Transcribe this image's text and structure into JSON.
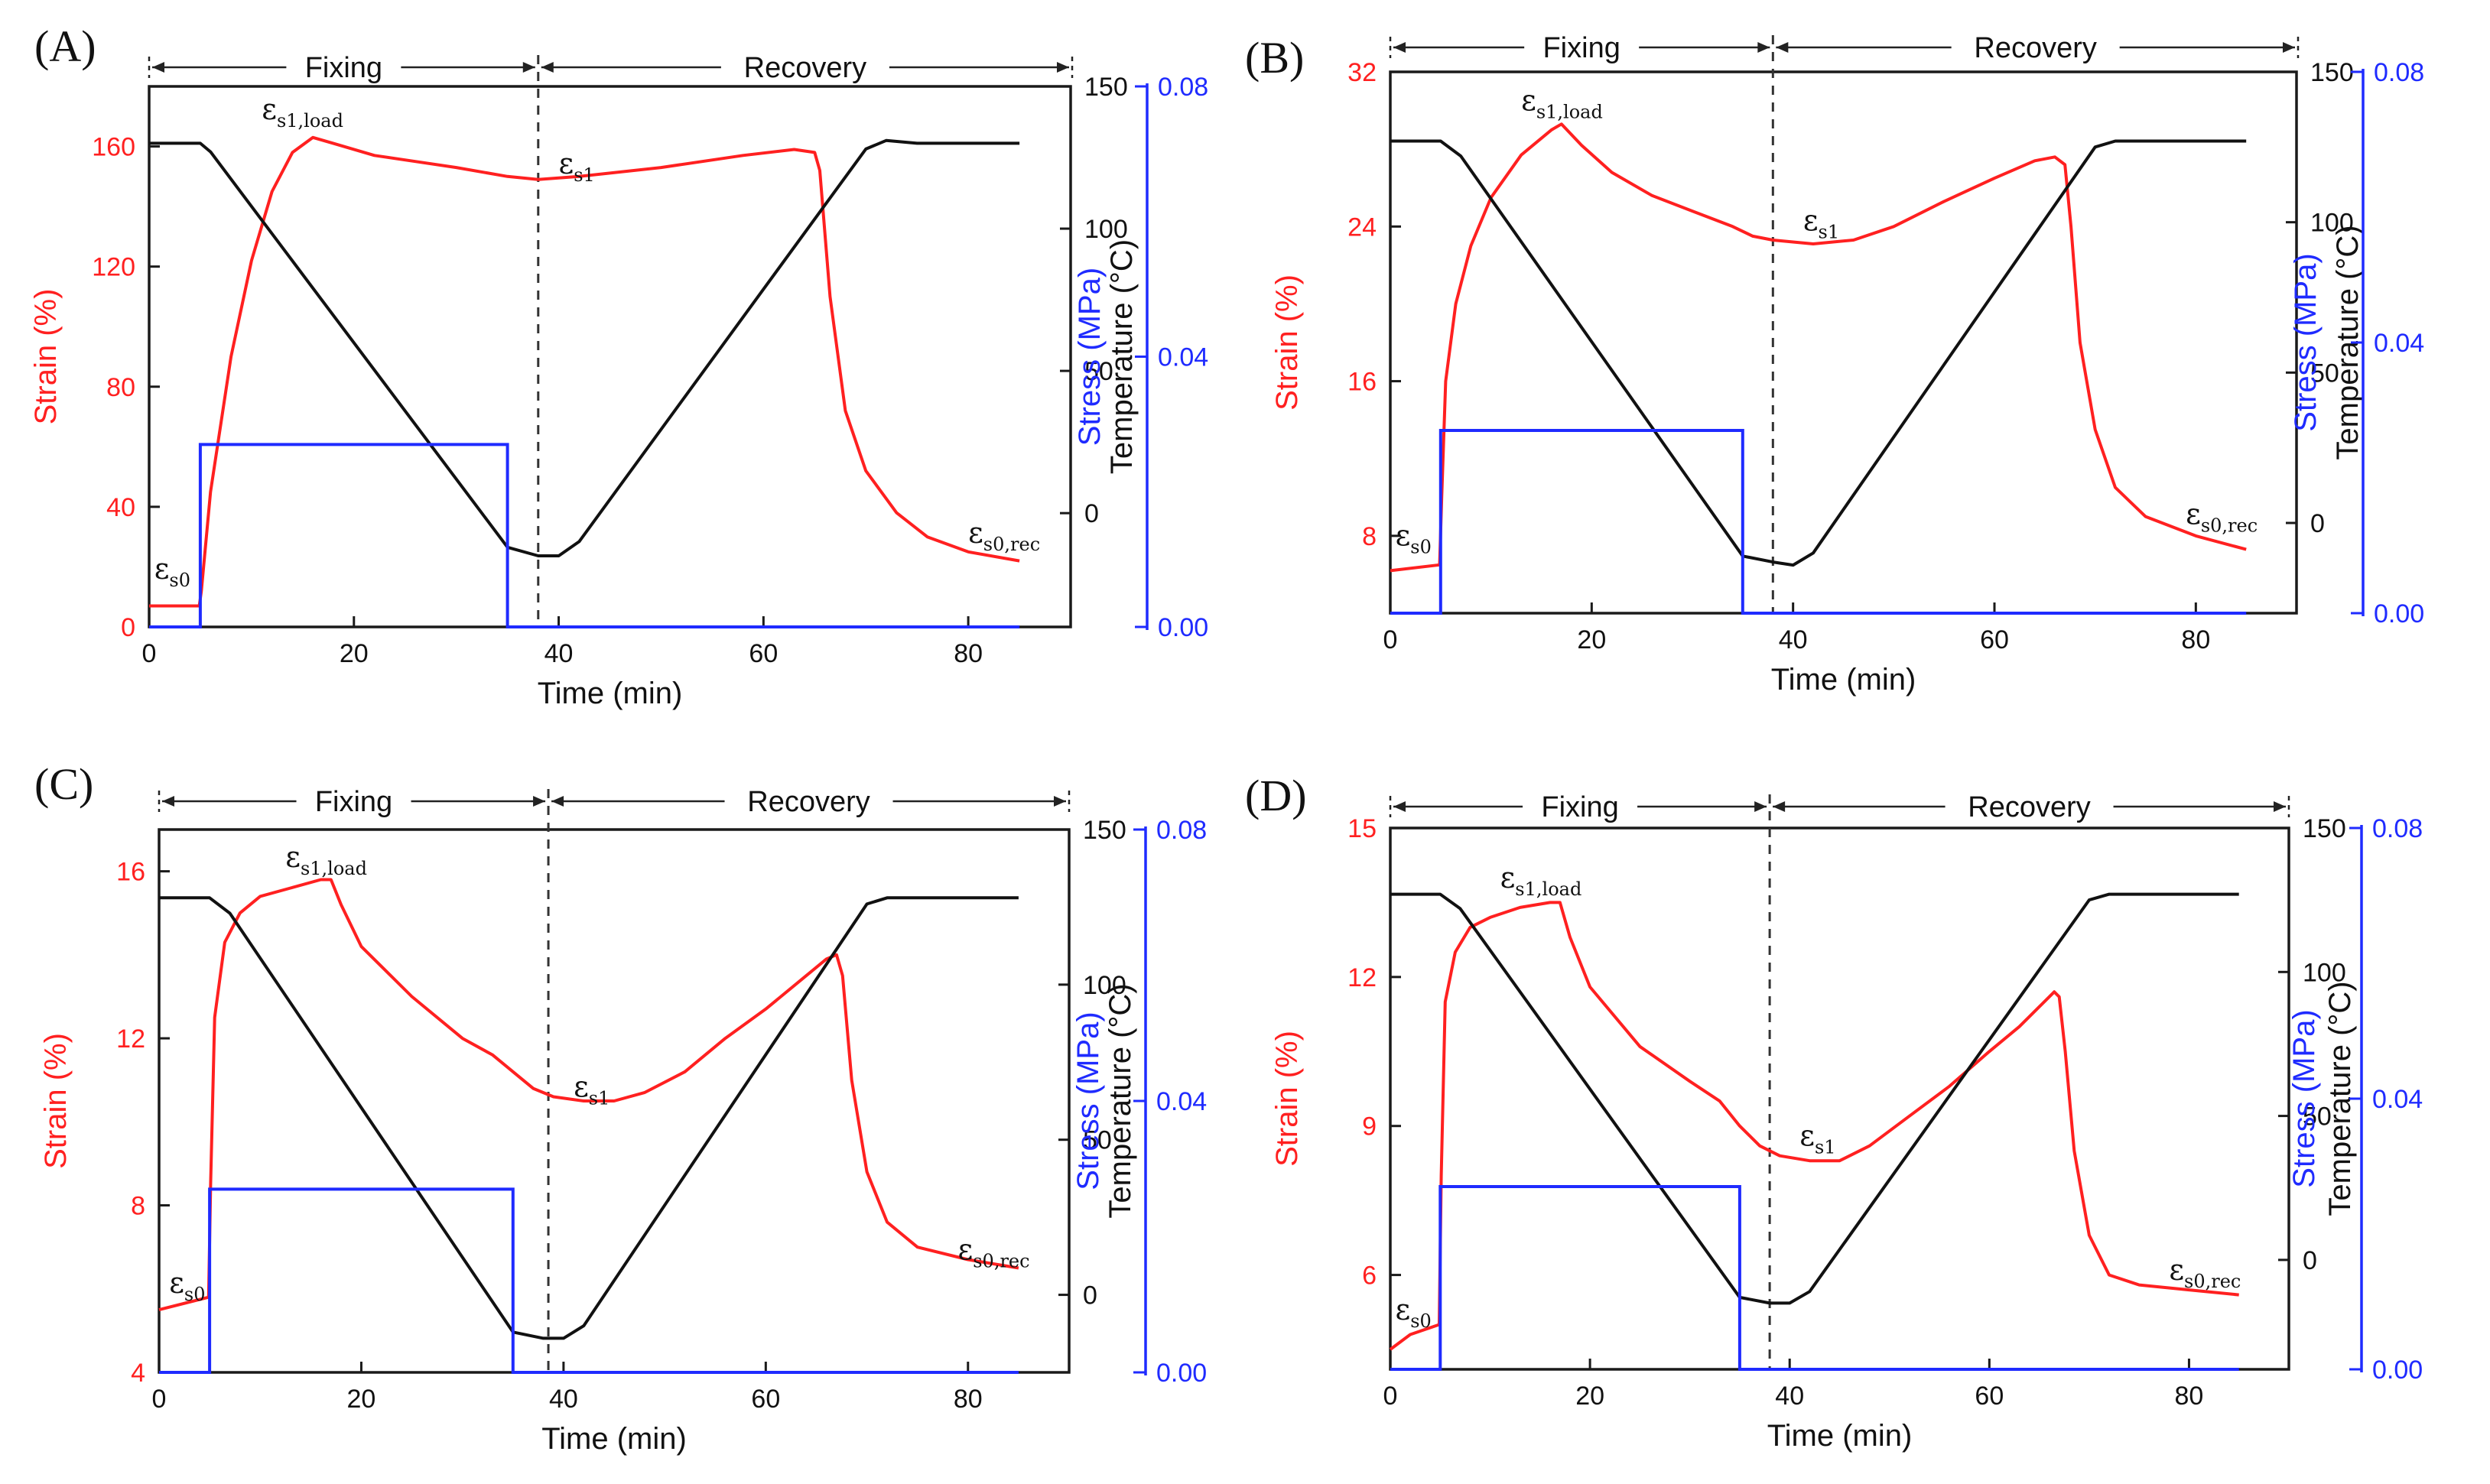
{
  "chart_data": [
    {
      "type": "line",
      "panel_label": "(A)",
      "phase_labels": [
        "Fixing",
        "Recovery"
      ],
      "phase_divider_time": 38,
      "xlabel": "Time (min)",
      "xlim": [
        0,
        90
      ],
      "xticks": [
        "0",
        "20",
        "40",
        "60",
        "80"
      ],
      "y_left": {
        "label": "Strain (%)",
        "lim": [
          0,
          180
        ],
        "ticks": [
          "0",
          "40",
          "80",
          "120",
          "160"
        ],
        "color": "#ff2020"
      },
      "y_right1": {
        "label": "Temperature (°C)",
        "lim": [
          -40,
          150
        ],
        "ticks": [
          "0",
          "50",
          "100",
          "150"
        ],
        "color": "#111111"
      },
      "y_right2": {
        "label": "Stress (MPa)",
        "lim": [
          0,
          0.08
        ],
        "ticks": [
          "0.00",
          "0.04",
          "0.08"
        ],
        "color": "#1f2bff"
      },
      "series": [
        {
          "name": "Strain",
          "axis": "y_left",
          "color": "#ff2020",
          "x": [
            0,
            4.9,
            5.1,
            6,
            8,
            10,
            12,
            14,
            16,
            18,
            22,
            26,
            30,
            35,
            38,
            42,
            50,
            58,
            63,
            65,
            65.5,
            66.5,
            68,
            70,
            73,
            76,
            80,
            85
          ],
          "y": [
            7,
            7,
            12,
            45,
            90,
            122,
            145,
            158,
            163,
            161,
            157,
            155,
            153,
            150,
            149,
            150,
            153,
            157,
            159,
            158,
            152,
            110,
            72,
            52,
            38,
            30,
            25,
            22
          ]
        },
        {
          "name": "Temperature",
          "axis": "y_right1",
          "color": "#111111",
          "x": [
            0,
            5,
            6,
            35,
            38,
            40,
            42,
            70,
            72,
            75,
            85
          ],
          "y": [
            130,
            130,
            127,
            -12,
            -15,
            -15,
            -10,
            128,
            131,
            130,
            130
          ]
        },
        {
          "name": "Stress",
          "axis": "y_right2",
          "color": "#1f2bff",
          "x": [
            0,
            5,
            5,
            35,
            35,
            85
          ],
          "y": [
            0,
            0,
            0.027,
            0.027,
            0,
            0
          ]
        }
      ],
      "annotations": [
        {
          "base": "ε",
          "sub": "s0",
          "x": 0.5,
          "y": 16
        },
        {
          "base": "ε",
          "sub": "s1,load",
          "x": 11,
          "y": 169
        },
        {
          "base": "ε",
          "sub": "s1",
          "x": 40,
          "y": 151
        },
        {
          "base": "ε",
          "sub": "s0,rec",
          "x": 80,
          "y": 28
        }
      ]
    },
    {
      "type": "line",
      "panel_label": "(B)",
      "phase_labels": [
        "Fixing",
        "Recovery"
      ],
      "phase_divider_time": 38,
      "xlabel": "Time (min)",
      "xlim": [
        0,
        90
      ],
      "xticks": [
        "0",
        "20",
        "40",
        "60",
        "80"
      ],
      "y_left": {
        "label": "Strain (%)",
        "lim": [
          4,
          32
        ],
        "ticks": [
          "8",
          "16",
          "24",
          "32"
        ],
        "color": "#ff2020"
      },
      "y_right1": {
        "label": "Temperature (°C)",
        "lim": [
          -30,
          150
        ],
        "ticks": [
          "0",
          "50",
          "100",
          "150"
        ],
        "color": "#111111"
      },
      "y_right2": {
        "label": "Stress (MPa)",
        "lim": [
          0,
          0.08
        ],
        "ticks": [
          "0.00",
          "0.04",
          "0.08"
        ],
        "color": "#1f2bff"
      },
      "series": [
        {
          "name": "Strain",
          "axis": "y_left",
          "color": "#ff2020",
          "x": [
            0,
            4.9,
            5.1,
            5.5,
            6.5,
            8,
            10,
            13,
            16,
            17,
            19,
            22,
            26,
            30,
            34,
            36,
            38,
            42,
            46,
            50,
            55,
            60,
            64,
            66,
            67,
            67.6,
            68.5,
            70,
            72,
            75,
            80,
            85
          ],
          "y": [
            6.2,
            6.5,
            10,
            16,
            20,
            23,
            25.5,
            27.7,
            29,
            29.3,
            28.2,
            26.8,
            25.6,
            24.8,
            24,
            23.5,
            23.3,
            23.1,
            23.3,
            24,
            25.3,
            26.5,
            27.4,
            27.6,
            27.2,
            24,
            18,
            13.5,
            10.5,
            9,
            8,
            7.3
          ]
        },
        {
          "name": "Temperature",
          "axis": "y_right1",
          "color": "#111111",
          "x": [
            0,
            5,
            7,
            35,
            38,
            40,
            42,
            70,
            72,
            85
          ],
          "y": [
            127,
            127,
            122,
            -11,
            -13,
            -14,
            -10,
            125,
            127,
            127
          ]
        },
        {
          "name": "Stress",
          "axis": "y_right2",
          "color": "#1f2bff",
          "x": [
            0,
            5,
            5,
            35,
            35,
            85
          ],
          "y": [
            0,
            0,
            0.027,
            0.027,
            0,
            0
          ]
        }
      ],
      "annotations": [
        {
          "base": "ε",
          "sub": "s0",
          "x": 0.5,
          "y": 7.5
        },
        {
          "base": "ε",
          "sub": "s1,load",
          "x": 13,
          "y": 30
        },
        {
          "base": "ε",
          "sub": "s1",
          "x": 41,
          "y": 23.8
        },
        {
          "base": "ε",
          "sub": "s0,rec",
          "x": 79,
          "y": 8.6
        }
      ]
    },
    {
      "type": "line",
      "panel_label": "(C)",
      "phase_labels": [
        "Fixing",
        "Recovery"
      ],
      "phase_divider_time": 38.5,
      "xlabel": "Time (min)",
      "xlim": [
        0,
        90
      ],
      "xticks": [
        "0",
        "20",
        "40",
        "60",
        "80"
      ],
      "y_left": {
        "label": "Strain (%)",
        "lim": [
          4,
          17
        ],
        "ticks": [
          "4",
          "8",
          "12",
          "16"
        ],
        "color": "#ff2020"
      },
      "y_right1": {
        "label": "Temperature (°C)",
        "lim": [
          -25,
          150
        ],
        "ticks": [
          "0",
          "50",
          "100",
          "150"
        ],
        "color": "#111111"
      },
      "y_right2": {
        "label": "Stress (MPa)",
        "lim": [
          0,
          0.08
        ],
        "ticks": [
          "0.00",
          "0.04",
          "0.08"
        ],
        "color": "#1f2bff"
      },
      "series": [
        {
          "name": "Strain",
          "axis": "y_left",
          "color": "#ff2020",
          "x": [
            0,
            4.9,
            5.1,
            5.5,
            6.5,
            8,
            10,
            13,
            16,
            17,
            18,
            20,
            25,
            30,
            33,
            35,
            37,
            39,
            42,
            45,
            48,
            52,
            56,
            60,
            64,
            66,
            67,
            67.6,
            68.5,
            70,
            72,
            75,
            80,
            85
          ],
          "y": [
            5.5,
            5.8,
            8.5,
            12.5,
            14.3,
            15,
            15.4,
            15.6,
            15.8,
            15.8,
            15.2,
            14.2,
            13,
            12,
            11.6,
            11.2,
            10.8,
            10.6,
            10.5,
            10.5,
            10.7,
            11.2,
            12,
            12.7,
            13.5,
            13.9,
            14,
            13.5,
            11,
            8.8,
            7.6,
            7,
            6.7,
            6.5
          ]
        },
        {
          "name": "Temperature",
          "axis": "y_right1",
          "color": "#111111",
          "x": [
            0,
            5,
            7,
            35,
            38,
            40,
            42,
            70,
            72,
            85
          ],
          "y": [
            128,
            128,
            123,
            -12,
            -14,
            -14,
            -10,
            126,
            128,
            128
          ]
        },
        {
          "name": "Stress",
          "axis": "y_right2",
          "color": "#1f2bff",
          "x": [
            0,
            5,
            5,
            35,
            35,
            85
          ],
          "y": [
            0,
            0,
            0.027,
            0.027,
            0,
            0
          ]
        }
      ],
      "annotations": [
        {
          "base": "ε",
          "sub": "s0",
          "x": 1,
          "y": 5.9
        },
        {
          "base": "ε",
          "sub": "s1,load",
          "x": 12.5,
          "y": 16.1
        },
        {
          "base": "ε",
          "sub": "s1",
          "x": 41,
          "y": 10.6
        },
        {
          "base": "ε",
          "sub": "s0,rec",
          "x": 79,
          "y": 6.7
        }
      ]
    },
    {
      "type": "line",
      "panel_label": "(D)",
      "phase_labels": [
        "Fixing",
        "Recovery"
      ],
      "phase_divider_time": 38,
      "xlabel": "Time (min)",
      "xlim": [
        0,
        90
      ],
      "xticks": [
        "0",
        "20",
        "40",
        "60",
        "80"
      ],
      "y_left": {
        "label": "Strain (%)",
        "lim": [
          4.1,
          15
        ],
        "ticks": [
          "6",
          "9",
          "12",
          "15"
        ],
        "color": "#ff2020"
      },
      "y_right1": {
        "label": "Temperature (°C)",
        "lim": [
          -38,
          150
        ],
        "ticks": [
          "0",
          "50",
          "100",
          "150"
        ],
        "color": "#111111"
      },
      "y_right2": {
        "label": "Stress (MPa)",
        "lim": [
          0,
          0.08
        ],
        "ticks": [
          "0.00",
          "0.04",
          "0.08"
        ],
        "color": "#1f2bff"
      },
      "series": [
        {
          "name": "Strain",
          "axis": "y_left",
          "color": "#ff2020",
          "x": [
            0,
            2,
            4.9,
            5.1,
            5.5,
            6.5,
            8,
            10,
            13,
            16,
            17,
            18,
            20,
            25,
            30,
            33,
            35,
            37,
            39,
            42,
            45,
            48,
            52,
            56,
            60,
            63,
            65,
            66.5,
            67,
            67.6,
            68.5,
            70,
            72,
            75,
            80,
            85
          ],
          "y": [
            4.5,
            4.8,
            5.0,
            8,
            11.5,
            12.5,
            13,
            13.2,
            13.4,
            13.5,
            13.5,
            12.8,
            11.8,
            10.6,
            9.9,
            9.5,
            9.0,
            8.6,
            8.4,
            8.3,
            8.3,
            8.6,
            9.2,
            9.8,
            10.5,
            11,
            11.4,
            11.7,
            11.6,
            10.5,
            8.5,
            6.8,
            6.0,
            5.8,
            5.7,
            5.6
          ]
        },
        {
          "name": "Temperature",
          "axis": "y_right1",
          "color": "#111111",
          "x": [
            0,
            5,
            7,
            35,
            38,
            40,
            42,
            70,
            72,
            85
          ],
          "y": [
            127,
            127,
            122,
            -13,
            -15,
            -15,
            -11,
            125,
            127,
            127
          ]
        },
        {
          "name": "Stress",
          "axis": "y_right2",
          "color": "#1f2bff",
          "x": [
            0,
            5,
            5,
            35,
            35,
            85
          ],
          "y": [
            0,
            0,
            0.027,
            0.027,
            0,
            0
          ]
        }
      ],
      "annotations": [
        {
          "base": "ε",
          "sub": "s0",
          "x": 0.5,
          "y": 5.1
        },
        {
          "base": "ε",
          "sub": "s1,load",
          "x": 11,
          "y": 13.8
        },
        {
          "base": "ε",
          "sub": "s1",
          "x": 41,
          "y": 8.6
        },
        {
          "base": "ε",
          "sub": "s0,rec",
          "x": 78,
          "y": 5.9
        }
      ]
    }
  ]
}
